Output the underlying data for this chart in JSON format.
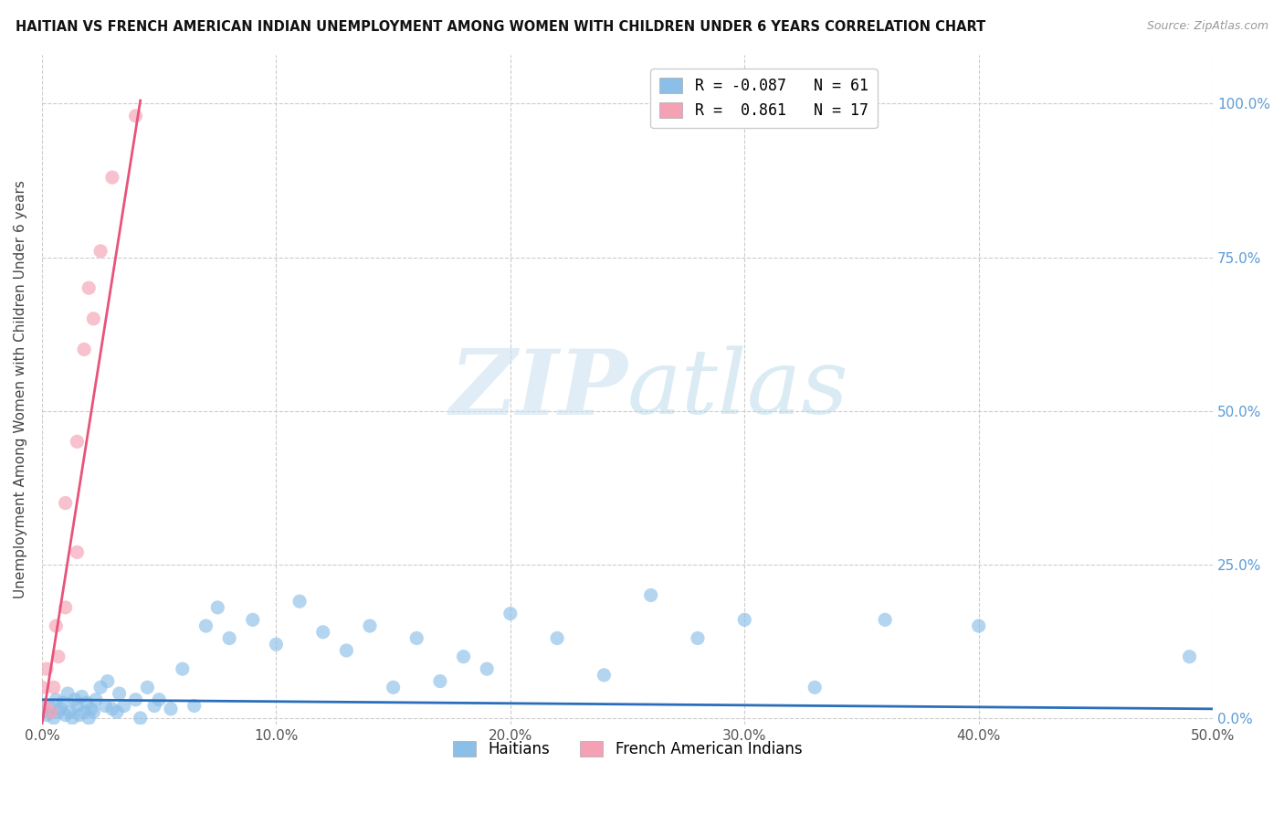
{
  "title": "HAITIAN VS FRENCH AMERICAN INDIAN UNEMPLOYMENT AMONG WOMEN WITH CHILDREN UNDER 6 YEARS CORRELATION CHART",
  "source": "Source: ZipAtlas.com",
  "ylabel": "Unemployment Among Women with Children Under 6 years",
  "xlim": [
    0.0,
    0.5
  ],
  "ylim": [
    -0.01,
    1.08
  ],
  "xticks": [
    0.0,
    0.1,
    0.2,
    0.3,
    0.4,
    0.5
  ],
  "xtick_labels": [
    "0.0%",
    "10.0%",
    "20.0%",
    "30.0%",
    "40.0%",
    "50.0%"
  ],
  "yticks": [
    0.0,
    0.25,
    0.5,
    0.75,
    1.0
  ],
  "ytick_labels": [
    "0.0%",
    "25.0%",
    "50.0%",
    "75.0%",
    "100.0%"
  ],
  "background_color": "#ffffff",
  "grid_color": "#cccccc",
  "watermark_zip": "ZIP",
  "watermark_atlas": "atlas",
  "legend_label1": "R = -0.087   N = 61",
  "legend_label2": "R =  0.861   N = 17",
  "legend_series1": "Haitians",
  "legend_series2": "French American Indians",
  "color_blue": "#8bbfe8",
  "color_pink": "#f4a0b5",
  "color_blue_line": "#2a6ebb",
  "color_pink_line": "#e8537a",
  "haitians_x": [
    0.0,
    0.002,
    0.003,
    0.005,
    0.006,
    0.007,
    0.008,
    0.009,
    0.01,
    0.011,
    0.012,
    0.013,
    0.014,
    0.015,
    0.016,
    0.017,
    0.018,
    0.019,
    0.02,
    0.021,
    0.022,
    0.023,
    0.025,
    0.027,
    0.028,
    0.03,
    0.032,
    0.033,
    0.035,
    0.04,
    0.042,
    0.045,
    0.048,
    0.05,
    0.055,
    0.06,
    0.065,
    0.07,
    0.075,
    0.08,
    0.09,
    0.1,
    0.11,
    0.12,
    0.13,
    0.14,
    0.15,
    0.16,
    0.17,
    0.18,
    0.19,
    0.2,
    0.22,
    0.24,
    0.26,
    0.28,
    0.3,
    0.33,
    0.36,
    0.4,
    0.49
  ],
  "haitians_y": [
    0.01,
    0.005,
    0.02,
    0.0,
    0.03,
    0.01,
    0.015,
    0.025,
    0.005,
    0.04,
    0.01,
    0.0,
    0.03,
    0.02,
    0.005,
    0.035,
    0.01,
    0.025,
    0.0,
    0.015,
    0.01,
    0.03,
    0.05,
    0.02,
    0.06,
    0.015,
    0.01,
    0.04,
    0.02,
    0.03,
    0.0,
    0.05,
    0.02,
    0.03,
    0.015,
    0.08,
    0.02,
    0.15,
    0.18,
    0.13,
    0.16,
    0.12,
    0.19,
    0.14,
    0.11,
    0.15,
    0.05,
    0.13,
    0.06,
    0.1,
    0.08,
    0.17,
    0.13,
    0.07,
    0.2,
    0.13,
    0.16,
    0.05,
    0.16,
    0.15,
    0.1
  ],
  "french_x": [
    0.0,
    0.001,
    0.002,
    0.004,
    0.005,
    0.006,
    0.007,
    0.01,
    0.01,
    0.015,
    0.015,
    0.018,
    0.02,
    0.022,
    0.025,
    0.03,
    0.04
  ],
  "french_y": [
    0.05,
    0.02,
    0.08,
    0.01,
    0.05,
    0.15,
    0.1,
    0.35,
    0.18,
    0.45,
    0.27,
    0.6,
    0.7,
    0.65,
    0.76,
    0.88,
    0.98
  ],
  "blue_line_x": [
    0.0,
    0.5
  ],
  "blue_line_y": [
    0.03,
    0.015
  ],
  "pink_line_x": [
    0.0,
    0.042
  ],
  "pink_line_y": [
    -0.01,
    1.005
  ]
}
